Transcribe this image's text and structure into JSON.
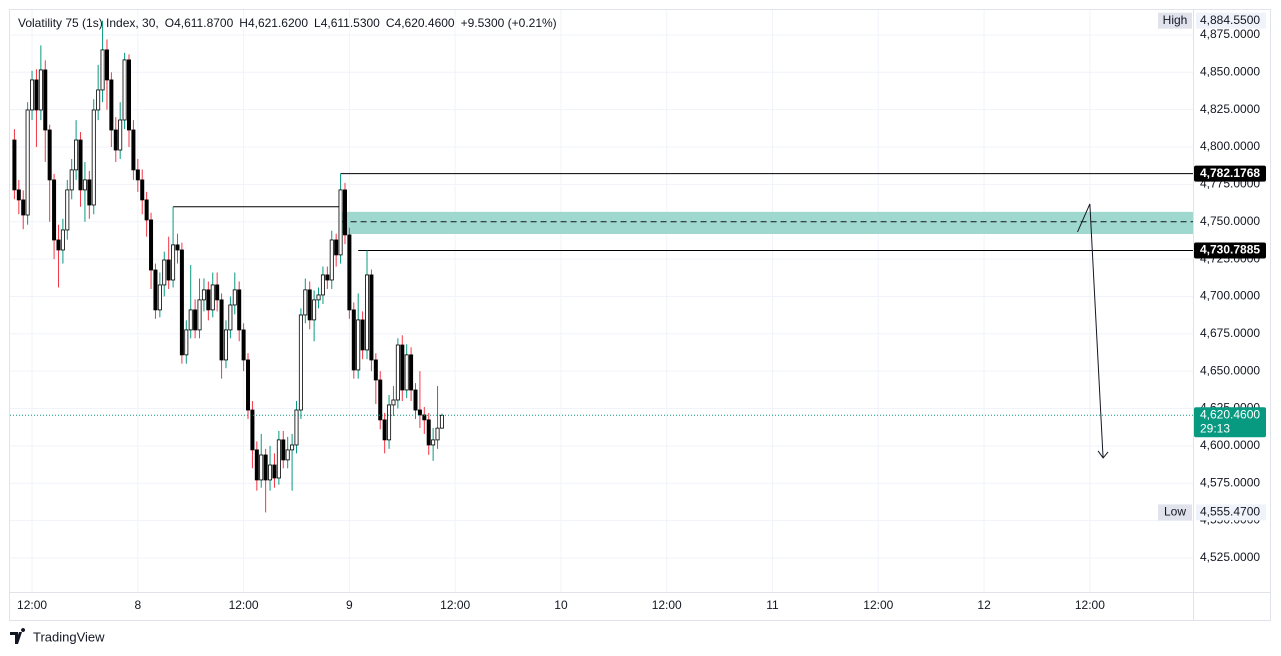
{
  "chart_data": {
    "type": "candlestick",
    "title": "Volatility 75 (1s) Index, 30,",
    "ohlc_labels": [
      {
        "prefix": "O",
        "text": "4,611.8700"
      },
      {
        "prefix": "H",
        "text": "4,621.6200"
      },
      {
        "prefix": "L",
        "text": "4,611.5300"
      },
      {
        "prefix": "C",
        "text": "4,620.4600"
      }
    ],
    "change": "+9.5300 (+0.21%)",
    "xlim": [
      9.5,
      143.7
    ],
    "xticks": [
      {
        "value": 12,
        "label": "12:00"
      },
      {
        "value": 24,
        "label": "8"
      },
      {
        "value": 36,
        "label": "12:00"
      },
      {
        "value": 48,
        "label": "9"
      },
      {
        "value": 60,
        "label": "12:00"
      },
      {
        "value": 72,
        "label": "10"
      },
      {
        "value": 84,
        "label": "12:00"
      },
      {
        "value": 96,
        "label": "11"
      },
      {
        "value": 108,
        "label": "12:00"
      },
      {
        "value": 120,
        "label": "12"
      },
      {
        "value": 132,
        "label": "12:00"
      }
    ],
    "ylim": [
      4502.2,
      4891.7
    ],
    "yticks": [
      {
        "value": 4525,
        "label": "4,525.0000"
      },
      {
        "value": 4550,
        "label": "4,550.0000"
      },
      {
        "value": 4575,
        "label": "4,575.0000"
      },
      {
        "value": 4600,
        "label": "4,600.0000"
      },
      {
        "value": 4625,
        "label": "4,625.0000"
      },
      {
        "value": 4650,
        "label": "4,650.0000"
      },
      {
        "value": 4675,
        "label": "4,675.0000"
      },
      {
        "value": 4700,
        "label": "4,700.0000"
      },
      {
        "value": 4725,
        "label": "4,725.0000"
      },
      {
        "value": 4750,
        "label": "4,750.0000"
      },
      {
        "value": 4775,
        "label": "4,775.0000"
      },
      {
        "value": 4800,
        "label": "4,800.0000"
      },
      {
        "value": 4825,
        "label": "4,825.0000"
      },
      {
        "value": 4850,
        "label": "4,850.0000"
      },
      {
        "value": 4875,
        "label": "4,875.0000"
      }
    ],
    "grid": true,
    "colors": {
      "up_body": "#ffffff",
      "down_body": "#000000",
      "border": "#000000",
      "up_wick": "#089981",
      "down_wick": "#f23645",
      "zone": "#9fd8cf",
      "current": "#089981",
      "tag_dark": "#000000",
      "tag_plain": "#e0e3eb"
    },
    "x": [
      10,
      10.5,
      11,
      11.5,
      12,
      12.5,
      13,
      13.5,
      14,
      14.5,
      15,
      15.5,
      16,
      16.5,
      17,
      17.5,
      18,
      18.5,
      19,
      19.5,
      20,
      20.5,
      21,
      21.5,
      22,
      22.5,
      23,
      23.5,
      24,
      24.5,
      25,
      25.5,
      26,
      26.5,
      27,
      27.5,
      28,
      28.5,
      29,
      29.5,
      30,
      30.5,
      31,
      31.5,
      32,
      32.5,
      33,
      33.5,
      34,
      34.5,
      35,
      35.5,
      36,
      36.5,
      37,
      37.5,
      38,
      38.5,
      39,
      39.5,
      40,
      40.5,
      41,
      41.5,
      42,
      42.5,
      43,
      43.5,
      44,
      44.5,
      45,
      45.5,
      46,
      46.5,
      47,
      47.5,
      48,
      48.5,
      49,
      49.5,
      50,
      50.5,
      51,
      51.5,
      52,
      52.5,
      53,
      53.5,
      54,
      54.5,
      55,
      55.5,
      56,
      56.5,
      57,
      57.5,
      58,
      58.5
    ],
    "open": [
      4804.7,
      4771.3,
      4764.6,
      4754.5,
      4824.8,
      4844.9,
      4824.8,
      4851.6,
      4811.4,
      4778.0,
      4737.8,
      4731.1,
      4744.5,
      4771.3,
      4784.7,
      4804.7,
      4771.3,
      4778.0,
      4761.2,
      4824.8,
      4838.2,
      4865.0,
      4844.9,
      4811.4,
      4798.0,
      4818.1,
      4858.3,
      4811.4,
      4784.7,
      4778.0,
      4764.6,
      4751.2,
      4717.7,
      4691.0,
      4707.7,
      4724.4,
      4711.0,
      4734.5,
      4731.1,
      4660.9,
      4677.6,
      4691.0,
      4677.6,
      4697.7,
      4704.4,
      4691.0,
      4707.7,
      4697.7,
      4657.5,
      4677.6,
      4694.3,
      4704.4,
      4677.6,
      4657.5,
      4624.0,
      4597.3,
      4577.2,
      4593.9,
      4577.2,
      4587.2,
      4578.5,
      4604.0,
      4590.6,
      4597.3,
      4600.6,
      4624.0,
      4687.6,
      4704.4,
      4684.3,
      4697.7,
      4701.0,
      4714.4,
      4711.0,
      4737.8,
      4727.8,
      4771.3,
      4741.2,
      4691.0,
      4650.8,
      4684.3,
      4664.2,
      4714.4,
      4657.5,
      4644.1,
      4617.4,
      4604.0,
      4627.4,
      4630.7,
      4667.5,
      4637.4,
      4660.9,
      4637.4,
      4624.0,
      4620.7,
      4617.4,
      4600.6,
      4604.0,
      4611.87
    ],
    "high": [
      4812,
      4778,
      4771,
      4830,
      4851,
      4852,
      4868,
      4858,
      4815,
      4782,
      4748,
      4752,
      4778,
      4792,
      4818,
      4810,
      4790,
      4784,
      4832,
      4855,
      4884.55,
      4872,
      4850,
      4820,
      4830,
      4863,
      4862,
      4818,
      4792,
      4785,
      4770,
      4756,
      4722,
      4716,
      4730,
      4740,
      4760,
      4742,
      4736,
      4684,
      4721,
      4698,
      4712,
      4712,
      4710,
      4716,
      4716,
      4702,
      4684,
      4700,
      4716,
      4710,
      4682,
      4662,
      4630,
      4603,
      4608,
      4598,
      4600,
      4595,
      4610,
      4610,
      4606,
      4608,
      4630,
      4692,
      4712,
      4710,
      4704,
      4706,
      4720,
      4720,
      4744,
      4742,
      4782.1768,
      4776,
      4746,
      4696,
      4702,
      4690,
      4730.7885,
      4718,
      4662,
      4650,
      4622,
      4634,
      4640,
      4672,
      4674,
      4668,
      4666,
      4642,
      4650,
      4626,
      4622,
      4612,
      4640,
      4621.62
    ],
    "low": [
      4765,
      4755,
      4745,
      4748,
      4818,
      4800,
      4818,
      4790,
      4750,
      4725,
      4706,
      4722,
      4738,
      4765,
      4778,
      4760,
      4750,
      4752,
      4755,
      4818,
      4830,
      4825,
      4800,
      4790,
      4792,
      4812,
      4800,
      4778,
      4770,
      4755,
      4740,
      4705,
      4685,
      4686,
      4700,
      4705,
      4706,
      4722,
      4655,
      4655,
      4672,
      4672,
      4672,
      4690,
      4684,
      4686,
      4690,
      4645,
      4652,
      4672,
      4688,
      4670,
      4650,
      4618,
      4585,
      4570,
      4572,
      4555.47,
      4570,
      4572,
      4574,
      4585,
      4585,
      4570,
      4595,
      4618,
      4682,
      4678,
      4670,
      4692,
      4695,
      4705,
      4705,
      4720,
      4722,
      4735,
      4685,
      4645,
      4645,
      4658,
      4658,
      4650,
      4628,
      4611,
      4595,
      4598,
      4620,
      4625,
      4630,
      4632,
      4630,
      4618,
      4612,
      4608,
      4594,
      4590,
      4598,
      4611.53
    ],
    "close": [
      4771.3,
      4764.6,
      4754.5,
      4824.8,
      4844.9,
      4824.8,
      4851.6,
      4811.4,
      4778.0,
      4737.8,
      4731.1,
      4744.5,
      4771.3,
      4784.7,
      4804.7,
      4771.3,
      4778.0,
      4761.2,
      4824.8,
      4838.2,
      4865.0,
      4844.9,
      4811.4,
      4798.0,
      4818.1,
      4858.3,
      4811.4,
      4784.7,
      4778.0,
      4764.6,
      4751.2,
      4717.7,
      4691.0,
      4707.7,
      4724.4,
      4711.0,
      4734.5,
      4731.1,
      4660.9,
      4677.6,
      4691.0,
      4677.6,
      4697.7,
      4704.4,
      4691.0,
      4707.7,
      4697.7,
      4657.5,
      4677.6,
      4694.3,
      4704.4,
      4677.6,
      4657.5,
      4624.0,
      4597.3,
      4577.2,
      4593.9,
      4577.2,
      4587.2,
      4578.5,
      4604.0,
      4590.6,
      4597.3,
      4600.6,
      4624.0,
      4687.6,
      4704.4,
      4684.3,
      4697.7,
      4701.0,
      4714.4,
      4711.0,
      4737.8,
      4727.8,
      4771.3,
      4741.2,
      4691.0,
      4650.8,
      4684.3,
      4664.2,
      4714.4,
      4657.5,
      4644.1,
      4617.4,
      4604.0,
      4627.4,
      4630.7,
      4667.5,
      4637.4,
      4660.9,
      4637.4,
      4624.0,
      4620.7,
      4617.4,
      4600.6,
      4604.0,
      4611.87,
      4620.46
    ],
    "levels": [
      {
        "value": 4760,
        "from": 28,
        "to": 47
      },
      {
        "value": 4782.1768,
        "from": 47
      },
      {
        "value": 4730.7885,
        "from": 49
      }
    ],
    "zone": {
      "low": 4741.8,
      "high": 4756.6,
      "mid": 4750,
      "from": 47
    },
    "arrow": {
      "x": [
        130.6,
        132,
        133.5
      ],
      "y": [
        4743.2,
        4761.9,
        4591.9
      ]
    },
    "price_tags": [
      {
        "label": "High",
        "text": "4,884.5500",
        "value": 4884.55,
        "style": "plain"
      },
      {
        "label": "Low",
        "text": "4,555.4700",
        "value": 4555.47,
        "style": "plain"
      },
      {
        "text": "4,782.1768",
        "value": 4782.1768,
        "style": "dark"
      },
      {
        "text": "4,730.7885",
        "value": 4730.7885,
        "style": "dark"
      },
      {
        "text": "4,620.4600",
        "sub": "29:13",
        "value": 4620.46,
        "style": "current"
      }
    ]
  },
  "footer": {
    "brand": "TradingView"
  }
}
